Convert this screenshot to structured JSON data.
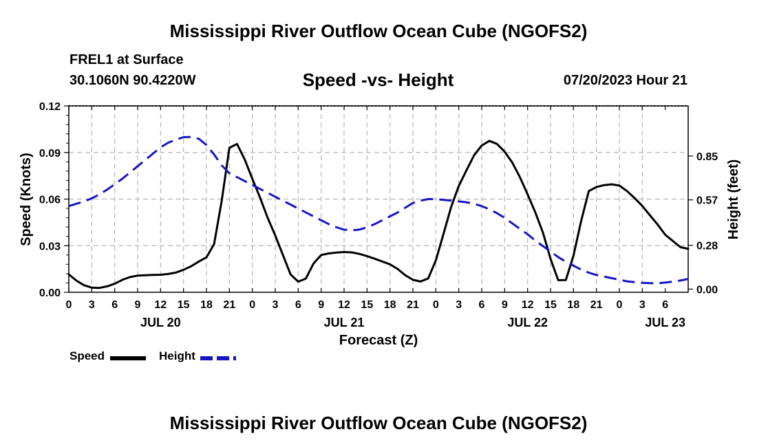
{
  "header": {
    "title": "Mississippi River Outflow Ocean Cube (NGOFS2)",
    "station": "FREL1 at Surface",
    "coords": "30.1060N  90.4220W",
    "subtitle": "Speed -vs- Height",
    "date": "07/20/2023 Hour 21"
  },
  "footer": {
    "title": "Mississippi River Outflow Ocean Cube (NGOFS2)"
  },
  "legend": {
    "speed_label": "Speed",
    "height_label": "Height",
    "speed_color": "#000000",
    "height_color": "#1515c8"
  },
  "chart_data": {
    "type": "line",
    "title": "Speed -vs- Height",
    "xlabel": "Forecast (Z)",
    "ylabel": "Speed (Knots)",
    "y2label": "Height (feet)",
    "x_range_hours": [
      0,
      81
    ],
    "x_tick_labels": [
      "0",
      "3",
      "6",
      "9",
      "12",
      "15",
      "18",
      "21",
      "0",
      "3",
      "6",
      "9",
      "12",
      "15",
      "18",
      "21",
      "0",
      "3",
      "6",
      "9",
      "12",
      "15",
      "18",
      "21",
      "0",
      "3",
      "6"
    ],
    "day_labels": [
      {
        "hour": 12,
        "label": "JUL 20"
      },
      {
        "hour": 36,
        "label": "JUL 21"
      },
      {
        "hour": 60,
        "label": "JUL 22"
      },
      {
        "hour": 78,
        "label": "JUL 23"
      }
    ],
    "ylim": [
      0,
      0.12
    ],
    "y_ticks": [
      0,
      0.03,
      0.06,
      0.09,
      0.12
    ],
    "y_tick_labels": [
      "0.00",
      "0.03",
      "0.06",
      "0.09",
      "0.12"
    ],
    "y2lim": [
      -0.02,
      1.17
    ],
    "y2_ticks": [
      0.0,
      0.28,
      0.57,
      0.85
    ],
    "y2_tick_labels": [
      "0.00",
      "0.28",
      "0.57",
      "0.85"
    ],
    "series": [
      {
        "name": "Speed",
        "axis": "left",
        "style": "solid",
        "color": "#000000",
        "x": [
          0,
          1,
          2,
          3,
          4,
          5,
          6,
          7,
          8,
          9,
          10,
          11,
          12,
          13,
          14,
          15,
          16,
          17,
          18,
          19,
          20,
          21,
          22,
          23,
          24,
          25,
          26,
          27,
          28,
          29,
          30,
          31,
          32,
          33,
          34,
          35,
          36,
          37,
          38,
          39,
          40,
          41,
          42,
          43,
          44,
          45,
          46,
          47,
          48,
          49,
          50,
          51,
          52,
          53,
          54,
          55,
          56,
          57,
          58,
          59,
          60,
          61,
          62,
          63,
          64,
          65,
          66,
          67,
          68,
          69,
          70,
          71,
          72,
          73,
          74,
          75,
          76,
          77,
          78,
          79,
          80,
          81
        ],
        "values": [
          0.0115,
          0.0075,
          0.0045,
          0.003,
          0.0028,
          0.0038,
          0.0055,
          0.008,
          0.0098,
          0.0107,
          0.011,
          0.0112,
          0.0113,
          0.0118,
          0.0127,
          0.0145,
          0.0168,
          0.0198,
          0.0225,
          0.031,
          0.059,
          0.093,
          0.0955,
          0.0855,
          0.073,
          0.061,
          0.048,
          0.0365,
          0.024,
          0.0115,
          0.0068,
          0.0088,
          0.0185,
          0.024,
          0.025,
          0.0256,
          0.0259,
          0.0257,
          0.0247,
          0.0233,
          0.0216,
          0.0198,
          0.018,
          0.015,
          0.011,
          0.008,
          0.0069,
          0.0089,
          0.0205,
          0.0375,
          0.055,
          0.0685,
          0.0785,
          0.0882,
          0.0945,
          0.0975,
          0.0955,
          0.0905,
          0.0835,
          0.074,
          0.063,
          0.0515,
          0.0385,
          0.0215,
          0.0078,
          0.0079,
          0.0235,
          0.0458,
          0.0652,
          0.0678,
          0.069,
          0.0695,
          0.0687,
          0.0652,
          0.0606,
          0.0556,
          0.0496,
          0.0436,
          0.037,
          0.033,
          0.029,
          0.028
        ]
      },
      {
        "name": "Height",
        "axis": "right",
        "style": "dashed",
        "color": "#1515c8",
        "x": [
          0,
          1,
          2,
          3,
          4,
          5,
          6,
          7,
          8,
          9,
          10,
          11,
          12,
          13,
          14,
          15,
          16,
          17,
          18,
          19,
          20,
          21,
          22,
          23,
          24,
          25,
          26,
          27,
          28,
          29,
          30,
          31,
          32,
          33,
          34,
          35,
          36,
          37,
          38,
          39,
          40,
          41,
          42,
          43,
          44,
          45,
          46,
          47,
          48,
          49,
          50,
          51,
          52,
          53,
          54,
          55,
          56,
          57,
          58,
          59,
          60,
          61,
          62,
          63,
          64,
          65,
          66,
          67,
          68,
          69,
          70,
          71,
          72,
          73,
          74,
          75,
          76,
          77,
          78,
          79,
          80,
          81
        ],
        "values": [
          0.53,
          0.545,
          0.56,
          0.58,
          0.605,
          0.635,
          0.67,
          0.705,
          0.745,
          0.785,
          0.825,
          0.865,
          0.905,
          0.935,
          0.955,
          0.97,
          0.972,
          0.96,
          0.92,
          0.86,
          0.79,
          0.74,
          0.715,
          0.69,
          0.665,
          0.64,
          0.615,
          0.59,
          0.565,
          0.54,
          0.515,
          0.49,
          0.465,
          0.44,
          0.415,
          0.395,
          0.38,
          0.375,
          0.38,
          0.395,
          0.415,
          0.44,
          0.465,
          0.49,
          0.52,
          0.55,
          0.565,
          0.575,
          0.575,
          0.57,
          0.565,
          0.56,
          0.555,
          0.545,
          0.53,
          0.51,
          0.485,
          0.455,
          0.42,
          0.385,
          0.35,
          0.31,
          0.275,
          0.24,
          0.205,
          0.175,
          0.15,
          0.125,
          0.105,
          0.09,
          0.08,
          0.07,
          0.06,
          0.05,
          0.045,
          0.04,
          0.038,
          0.038,
          0.042,
          0.048,
          0.055,
          0.065
        ]
      }
    ]
  }
}
